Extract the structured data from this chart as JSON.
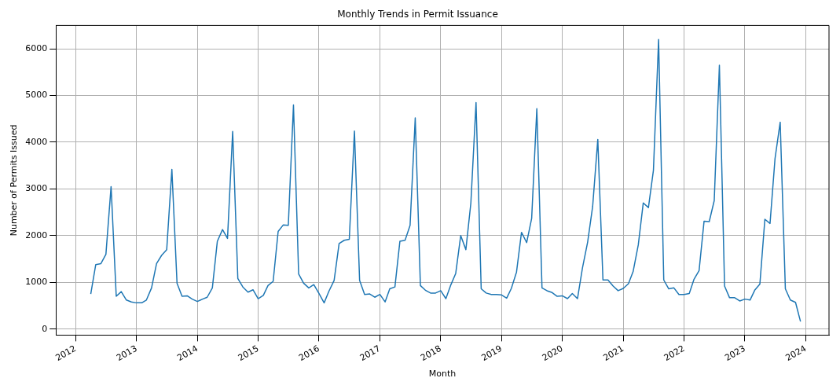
{
  "chart_data": {
    "type": "line",
    "title": "Monthly Trends in Permit Issuance",
    "xlabel": "Month",
    "ylabel": "Number of Permits Issued",
    "x": [
      "2012-04",
      "2012-05",
      "2012-06",
      "2012-07",
      "2012-08",
      "2012-09",
      "2012-10",
      "2012-11",
      "2012-12",
      "2013-01",
      "2013-02",
      "2013-03",
      "2013-04",
      "2013-05",
      "2013-06",
      "2013-07",
      "2013-08",
      "2013-09",
      "2013-10",
      "2013-11",
      "2013-12",
      "2014-01",
      "2014-02",
      "2014-03",
      "2014-04",
      "2014-05",
      "2014-06",
      "2014-07",
      "2014-08",
      "2014-09",
      "2014-10",
      "2014-11",
      "2014-12",
      "2015-01",
      "2015-02",
      "2015-03",
      "2015-04",
      "2015-05",
      "2015-06",
      "2015-07",
      "2015-08",
      "2015-09",
      "2015-10",
      "2015-11",
      "2015-12",
      "2016-01",
      "2016-02",
      "2016-03",
      "2016-04",
      "2016-05",
      "2016-06",
      "2016-07",
      "2016-08",
      "2016-09",
      "2016-10",
      "2016-11",
      "2016-12",
      "2017-01",
      "2017-02",
      "2017-03",
      "2017-04",
      "2017-05",
      "2017-06",
      "2017-07",
      "2017-08",
      "2017-09",
      "2017-10",
      "2017-11",
      "2017-12",
      "2018-01",
      "2018-02",
      "2018-03",
      "2018-04",
      "2018-05",
      "2018-06",
      "2018-07",
      "2018-08",
      "2018-09",
      "2018-10",
      "2018-11",
      "2018-12",
      "2019-01",
      "2019-02",
      "2019-03",
      "2019-04",
      "2019-05",
      "2019-06",
      "2019-07",
      "2019-08",
      "2019-09",
      "2019-10",
      "2019-11",
      "2019-12",
      "2020-01",
      "2020-02",
      "2020-03",
      "2020-04",
      "2020-05",
      "2020-06",
      "2020-07",
      "2020-08",
      "2020-09",
      "2020-10",
      "2020-11",
      "2020-12",
      "2021-01",
      "2021-02",
      "2021-03",
      "2021-04",
      "2021-05",
      "2021-06",
      "2021-07",
      "2021-08",
      "2021-09",
      "2021-10",
      "2021-11",
      "2021-12",
      "2022-01",
      "2022-02",
      "2022-03",
      "2022-04",
      "2022-05",
      "2022-06",
      "2022-07",
      "2022-08",
      "2022-09",
      "2022-10",
      "2022-11",
      "2022-12",
      "2023-01",
      "2023-02",
      "2023-03",
      "2023-04",
      "2023-05",
      "2023-06",
      "2023-07",
      "2023-08",
      "2023-09",
      "2023-10",
      "2023-11",
      "2023-12"
    ],
    "series": [
      {
        "color": "#1f77b4",
        "values": [
          750,
          1380,
          1400,
          1600,
          3050,
          700,
          800,
          620,
          580,
          560,
          560,
          620,
          880,
          1400,
          1580,
          1700,
          3420,
          980,
          700,
          710,
          640,
          590,
          640,
          680,
          880,
          1880,
          2130,
          1940,
          4230,
          1080,
          900,
          790,
          840,
          650,
          720,
          930,
          1020,
          2090,
          2230,
          2220,
          4800,
          1180,
          980,
          880,
          950,
          760,
          560,
          810,
          1040,
          1830,
          1900,
          1920,
          4240,
          1040,
          740,
          750,
          680,
          740,
          580,
          860,
          900,
          1880,
          1900,
          2220,
          4520,
          930,
          830,
          770,
          770,
          820,
          650,
          930,
          1190,
          2000,
          1700,
          2700,
          4850,
          860,
          770,
          740,
          740,
          730,
          660,
          870,
          1220,
          2070,
          1850,
          2370,
          4720,
          880,
          820,
          780,
          700,
          710,
          650,
          760,
          650,
          1310,
          1860,
          2620,
          4060,
          1050,
          1050,
          920,
          820,
          870,
          970,
          1230,
          1800,
          2700,
          2600,
          3400,
          6200,
          1050,
          860,
          880,
          740,
          740,
          760,
          1060,
          1250,
          2310,
          2300,
          2750,
          5650,
          920,
          670,
          670,
          600,
          640,
          620,
          830,
          960,
          2350,
          2260,
          3650,
          4430,
          860,
          620,
          570,
          160
        ]
      }
    ],
    "xlim": [
      "2011-09-05",
      "2024-05-20"
    ],
    "xticks": [
      "2012",
      "2013",
      "2014",
      "2015",
      "2016",
      "2017",
      "2018",
      "2019",
      "2020",
      "2021",
      "2022",
      "2023",
      "2024"
    ],
    "ylim": [
      -130,
      6500
    ],
    "yticks": [
      0,
      1000,
      2000,
      3000,
      4000,
      5000,
      6000
    ],
    "grid": true,
    "legend": false,
    "marker": "none",
    "line_style": "solid"
  }
}
